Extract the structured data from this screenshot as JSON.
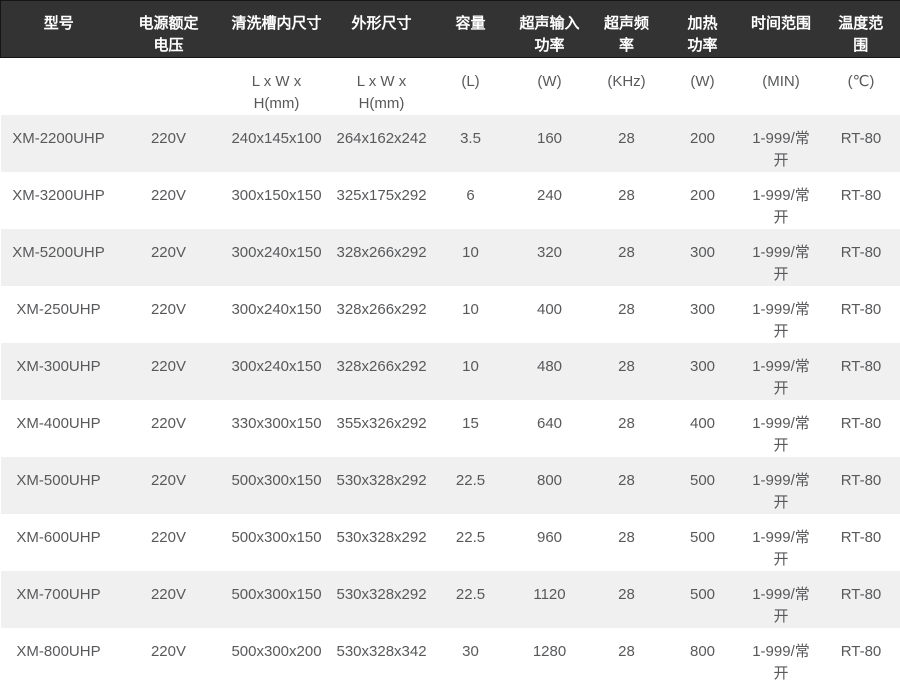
{
  "colors": {
    "header_bg": "#333333",
    "header_border": "#151515",
    "header_text": "#ffffff",
    "body_text": "#58595b",
    "stripe_bg": "#f0f0f0",
    "bottom_border": "#d9d9d9"
  },
  "table": {
    "headers": [
      "型号",
      "电源额定\n电压",
      "清洗槽内尺寸",
      "外形尺寸",
      "容量",
      "超声输入\n功率",
      "超声频\n率",
      "加热\n功率",
      "时间范围",
      "温度范\n围"
    ],
    "units": [
      "",
      "",
      "L x W x\nH(mm)",
      "L x W x\nH(mm)",
      "(L)",
      "(W)",
      "(KHz)",
      "(W)",
      "(MIN)",
      "(℃)"
    ],
    "rows": [
      [
        "XM-2200UHP",
        "220V",
        "240x145x100",
        "264x162x242",
        "3.5",
        "160",
        "28",
        "200",
        "1-999/常\n开",
        "RT-80"
      ],
      [
        "XM-3200UHP",
        "220V",
        "300x150x150",
        "325x175x292",
        "6",
        "240",
        "28",
        "200",
        "1-999/常\n开",
        "RT-80"
      ],
      [
        "XM-5200UHP",
        "220V",
        "300x240x150",
        "328x266x292",
        "10",
        "320",
        "28",
        "300",
        "1-999/常\n开",
        "RT-80"
      ],
      [
        "XM-250UHP",
        "220V",
        "300x240x150",
        "328x266x292",
        "10",
        "400",
        "28",
        "300",
        "1-999/常\n开",
        "RT-80"
      ],
      [
        "XM-300UHP",
        "220V",
        "300x240x150",
        "328x266x292",
        "10",
        "480",
        "28",
        "300",
        "1-999/常\n开",
        "RT-80"
      ],
      [
        "XM-400UHP",
        "220V",
        "330x300x150",
        "355x326x292",
        "15",
        "640",
        "28",
        "400",
        "1-999/常\n开",
        "RT-80"
      ],
      [
        "XM-500UHP",
        "220V",
        "500x300x150",
        "530x328x292",
        "22.5",
        "800",
        "28",
        "500",
        "1-999/常\n开",
        "RT-80"
      ],
      [
        "XM-600UHP",
        "220V",
        "500x300x150",
        "530x328x292",
        "22.5",
        "960",
        "28",
        "500",
        "1-999/常\n开",
        "RT-80"
      ],
      [
        "XM-700UHP",
        "220V",
        "500x300x150",
        "530x328x292",
        "22.5",
        "1120",
        "28",
        "500",
        "1-999/常\n开",
        "RT-80"
      ],
      [
        "XM-800UHP",
        "220V",
        "500x300x200",
        "530x328x342",
        "30",
        "1280",
        "28",
        "800",
        "1-999/常\n开",
        "RT-80"
      ]
    ]
  }
}
